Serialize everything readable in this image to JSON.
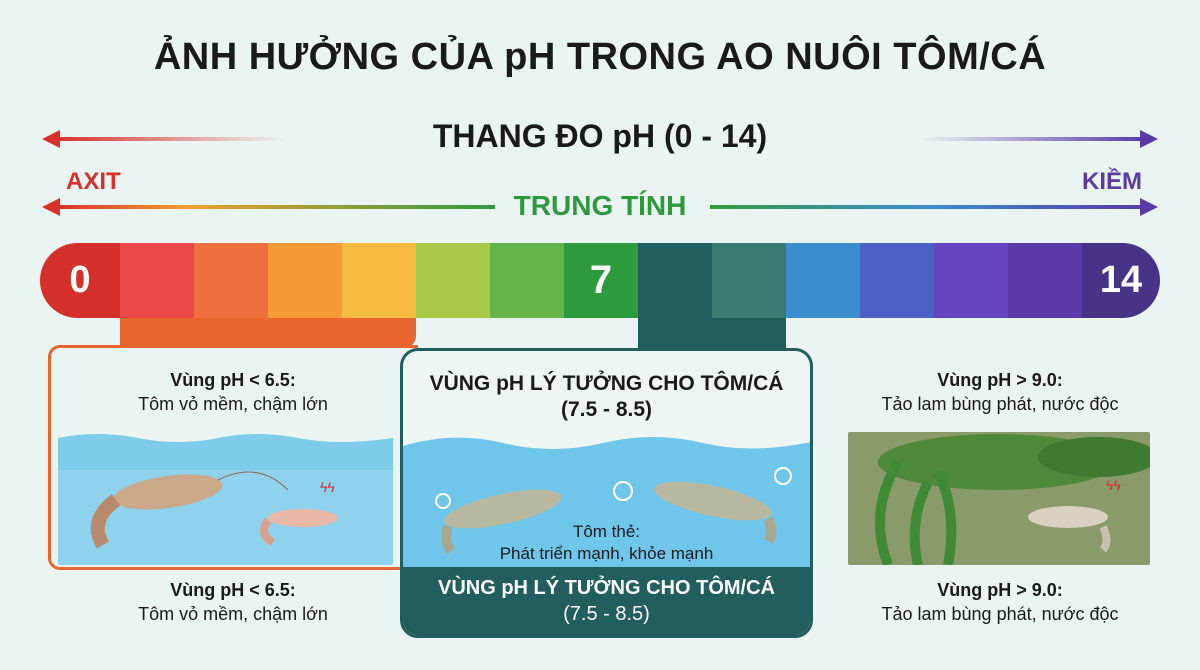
{
  "title": "ẢNH HƯỞNG CỦA pH TRONG AO NUÔI TÔM/CÁ",
  "scale_title": "THANG ĐO pH (0 - 14)",
  "acid_label": "AXIT",
  "alkaline_label": "KIỀM",
  "neutral_label": "TRUNG TÍNH",
  "scale": {
    "min_label": "0",
    "mid_label": "7",
    "max_label": "14",
    "colors": [
      "#d42f2a",
      "#e84848",
      "#ee6e3e",
      "#f59a35",
      "#f6ba40",
      "#a8c94a",
      "#66b54a",
      "#2e9a3e",
      "#235e5e",
      "#3b7a70",
      "#3a8ecf",
      "#4c60c3",
      "#6645c0",
      "#5a3aa8",
      "#483487"
    ]
  },
  "left_panel": {
    "heading": "Vùng pH < 6.5:",
    "desc": "Tôm vỏ mềm, chậm lớn",
    "footer_heading": "Vùng pH < 6.5:",
    "footer_desc": "Tôm vỏ mềm, chậm lớn",
    "color": "#e8652e"
  },
  "center_panel": {
    "heading": "VÙNG pH LÝ TƯỞNG CHO TÔM/CÁ",
    "range": "(7.5 - 8.5)",
    "caption_title": "Tôm thẻ:",
    "caption_desc": "Phát triển mạnh, khỏe mạnh",
    "footer_heading": "VÙNG pH LÝ TƯỞNG CHO TÔM/CÁ",
    "footer_range": "(7.5 - 8.5)",
    "color": "#235e5e"
  },
  "right_panel": {
    "heading": "Vùng pH > 9.0:",
    "desc": "Tảo lam bùng phát, nước độc",
    "footer_heading": "Vùng pH > 9.0:",
    "footer_desc": "Tảo lam bùng phát, nước độc"
  }
}
